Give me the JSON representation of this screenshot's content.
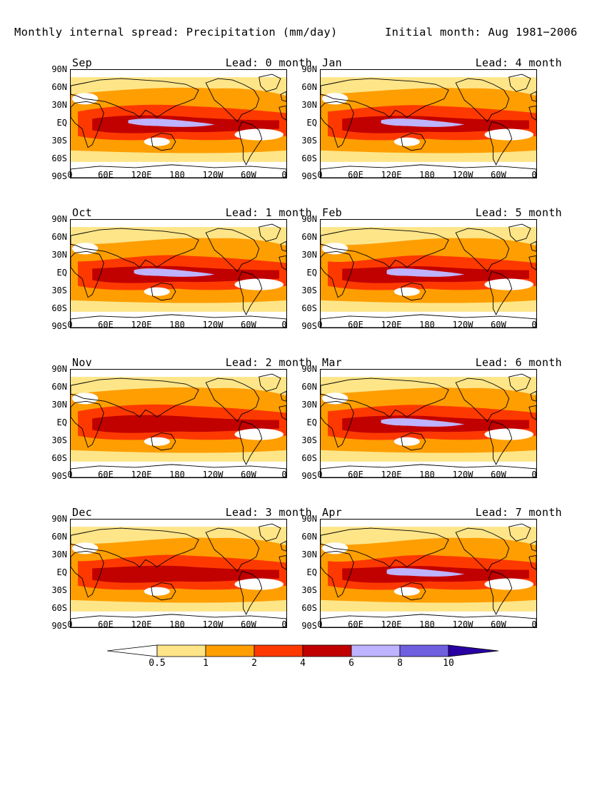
{
  "title": "Monthly internal spread: Precipitation (mm/day)",
  "initial": "Initial month: Aug 1981−2006",
  "lat_labels": [
    "90N",
    "60N",
    "30N",
    "EQ",
    "30S",
    "60S",
    "90S"
  ],
  "lon_labels": [
    "0",
    "60E",
    "120E",
    "180",
    "120W",
    "60W",
    "0"
  ],
  "panels": [
    {
      "month": "Sep",
      "lead": "Lead: 0 month",
      "maxlevel": 5
    },
    {
      "month": "Jan",
      "lead": "Lead: 4 month",
      "maxlevel": 5
    },
    {
      "month": "Oct",
      "lead": "Lead: 1 month",
      "maxlevel": 5
    },
    {
      "month": "Feb",
      "lead": "Lead: 5 month",
      "maxlevel": 5
    },
    {
      "month": "Nov",
      "lead": "Lead: 2 month",
      "maxlevel": 4
    },
    {
      "month": "Mar",
      "lead": "Lead: 6 month",
      "maxlevel": 5
    },
    {
      "month": "Dec",
      "lead": "Lead: 3 month",
      "maxlevel": 4
    },
    {
      "month": "Apr",
      "lead": "Lead: 7 month",
      "maxlevel": 5
    }
  ],
  "colorbar": {
    "ticks": [
      "0.5",
      "1",
      "2",
      "4",
      "6",
      "8",
      "10"
    ],
    "colors": [
      "#ffffff",
      "#fee588",
      "#fe9e00",
      "#fe3900",
      "#c10000",
      "#beb3fe",
      "#6f60e0",
      "#2900a2"
    ]
  }
}
